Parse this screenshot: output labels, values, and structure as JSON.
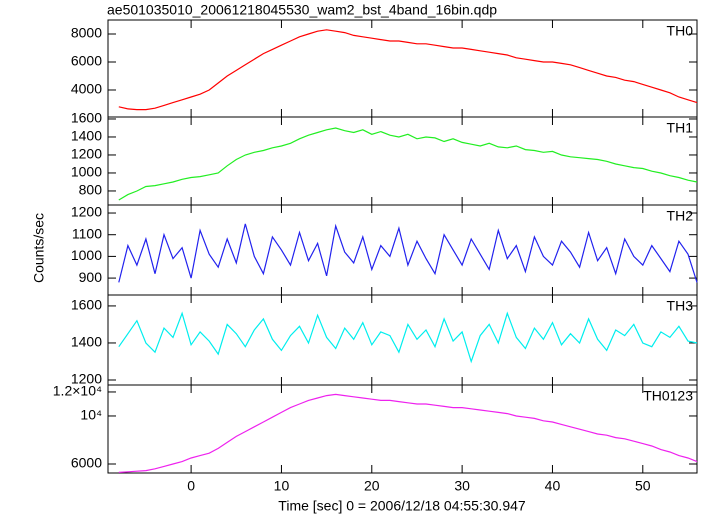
{
  "title": "ae501035010_20061218045530_wam2_bst_4band_16bin.qdp",
  "x_label": "Time [sec] 0 = 2006/12/18 04:55:30.947",
  "y_label": "Counts/sec",
  "chart_data": [
    {
      "type": "line",
      "xlim": [
        -9.2,
        56
      ],
      "ylim": [
        2070,
        9000
      ],
      "yticks": [
        4000,
        6000,
        8000
      ],
      "x": [
        -8,
        -7,
        -6,
        -5,
        -4,
        -3,
        -2,
        -1,
        0,
        1,
        2,
        3,
        4,
        5,
        6,
        7,
        8,
        9,
        10,
        11,
        12,
        13,
        14,
        15,
        16,
        17,
        18,
        19,
        20,
        21,
        22,
        23,
        24,
        25,
        26,
        27,
        28,
        29,
        30,
        31,
        32,
        33,
        34,
        35,
        36,
        37,
        38,
        39,
        40,
        41,
        42,
        43,
        44,
        45,
        46,
        47,
        48,
        49,
        50,
        51,
        52,
        53,
        54,
        55,
        56
      ],
      "series": [
        {
          "name": "TH0",
          "color": "#ff0000",
          "values": [
            2800,
            2650,
            2600,
            2600,
            2700,
            2900,
            3100,
            3300,
            3500,
            3700,
            4000,
            4500,
            5000,
            5400,
            5800,
            6200,
            6600,
            6900,
            7200,
            7500,
            7800,
            8000,
            8200,
            8300,
            8200,
            8100,
            7900,
            7800,
            7700,
            7600,
            7500,
            7500,
            7400,
            7300,
            7300,
            7200,
            7100,
            7000,
            7000,
            6900,
            6800,
            6700,
            6600,
            6500,
            6300,
            6200,
            6100,
            6000,
            6000,
            5900,
            5800,
            5600,
            5400,
            5200,
            5000,
            4900,
            4700,
            4600,
            4400,
            4200,
            4000,
            3800,
            3500,
            3300,
            3100
          ]
        }
      ]
    },
    {
      "type": "line",
      "xlim": [
        -9.2,
        56
      ],
      "ylim": [
        644,
        1622
      ],
      "yticks": [
        800,
        1000,
        1200,
        1400,
        1600
      ],
      "x": [
        -8,
        -7,
        -6,
        -5,
        -4,
        -3,
        -2,
        -1,
        0,
        1,
        2,
        3,
        4,
        5,
        6,
        7,
        8,
        9,
        10,
        11,
        12,
        13,
        14,
        15,
        16,
        17,
        18,
        19,
        20,
        21,
        22,
        23,
        24,
        25,
        26,
        27,
        28,
        29,
        30,
        31,
        32,
        33,
        34,
        35,
        36,
        37,
        38,
        39,
        40,
        41,
        42,
        43,
        44,
        45,
        46,
        47,
        48,
        49,
        50,
        51,
        52,
        53,
        54,
        55,
        56
      ],
      "series": [
        {
          "name": "TH1",
          "color": "#22ee22",
          "values": [
            700,
            760,
            800,
            850,
            860,
            880,
            900,
            930,
            950,
            960,
            980,
            1000,
            1080,
            1150,
            1200,
            1230,
            1250,
            1280,
            1300,
            1330,
            1380,
            1420,
            1450,
            1480,
            1500,
            1470,
            1450,
            1480,
            1430,
            1460,
            1420,
            1400,
            1430,
            1380,
            1400,
            1390,
            1350,
            1380,
            1340,
            1320,
            1300,
            1330,
            1290,
            1280,
            1300,
            1260,
            1250,
            1230,
            1240,
            1200,
            1180,
            1170,
            1160,
            1150,
            1130,
            1100,
            1080,
            1060,
            1050,
            1020,
            1000,
            970,
            950,
            920,
            900
          ]
        }
      ]
    },
    {
      "type": "line",
      "xlim": [
        -9.2,
        56
      ],
      "ylim": [
        822,
        1237
      ],
      "yticks": [
        900,
        1000,
        1100,
        1200
      ],
      "x": [
        -8,
        -7,
        -6,
        -5,
        -4,
        -3,
        -2,
        -1,
        0,
        1,
        2,
        3,
        4,
        5,
        6,
        7,
        8,
        9,
        10,
        11,
        12,
        13,
        14,
        15,
        16,
        17,
        18,
        19,
        20,
        21,
        22,
        23,
        24,
        25,
        26,
        27,
        28,
        29,
        30,
        31,
        32,
        33,
        34,
        35,
        36,
        37,
        38,
        39,
        40,
        41,
        42,
        43,
        44,
        45,
        46,
        47,
        48,
        49,
        50,
        51,
        52,
        53,
        54,
        55,
        56
      ],
      "series": [
        {
          "name": "TH2",
          "color": "#2222ee",
          "values": [
            880,
            1050,
            960,
            1080,
            920,
            1100,
            990,
            1040,
            900,
            1120,
            1010,
            950,
            1080,
            970,
            1150,
            1000,
            920,
            1090,
            1030,
            960,
            1110,
            980,
            1060,
            910,
            1140,
            1020,
            970,
            1090,
            940,
            1050,
            1000,
            1130,
            960,
            1070,
            990,
            920,
            1100,
            1030,
            960,
            1080,
            1010,
            940,
            1120,
            990,
            1050,
            930,
            1090,
            1000,
            960,
            1070,
            1020,
            950,
            1110,
            980,
            1040,
            920,
            1080,
            1000,
            960,
            1050,
            990,
            930,
            1070,
            1010,
            880
          ]
        }
      ]
    },
    {
      "type": "line",
      "xlim": [
        -9.2,
        56
      ],
      "ylim": [
        1173,
        1659
      ],
      "yticks": [
        1200,
        1400,
        1600
      ],
      "x": [
        -8,
        -7,
        -6,
        -5,
        -4,
        -3,
        -2,
        -1,
        0,
        1,
        2,
        3,
        4,
        5,
        6,
        7,
        8,
        9,
        10,
        11,
        12,
        13,
        14,
        15,
        16,
        17,
        18,
        19,
        20,
        21,
        22,
        23,
        24,
        25,
        26,
        27,
        28,
        29,
        30,
        31,
        32,
        33,
        34,
        35,
        36,
        37,
        38,
        39,
        40,
        41,
        42,
        43,
        44,
        45,
        46,
        47,
        48,
        49,
        50,
        51,
        52,
        53,
        54,
        55,
        56
      ],
      "series": [
        {
          "name": "TH3",
          "color": "#00eeee",
          "values": [
            1380,
            1450,
            1520,
            1400,
            1350,
            1480,
            1430,
            1560,
            1390,
            1460,
            1410,
            1340,
            1500,
            1450,
            1380,
            1470,
            1530,
            1420,
            1360,
            1440,
            1490,
            1400,
            1550,
            1430,
            1370,
            1480,
            1420,
            1510,
            1390,
            1460,
            1440,
            1350,
            1500,
            1420,
            1470,
            1380,
            1530,
            1410,
            1460,
            1300,
            1440,
            1500,
            1400,
            1560,
            1430,
            1370,
            1480,
            1420,
            1510,
            1390,
            1450,
            1400,
            1530,
            1420,
            1360,
            1470,
            1440,
            1500,
            1400,
            1380,
            1460,
            1430,
            1490,
            1410,
            1400
          ]
        }
      ]
    },
    {
      "type": "line",
      "xlim": [
        -9.2,
        56
      ],
      "ylim": [
        5250,
        12580
      ],
      "yticks": [
        6000,
        {
          "value": 10000,
          "label": "10⁴"
        },
        {
          "value": 12000,
          "label": "1.2×10⁴"
        }
      ],
      "xticks": [
        0,
        10,
        20,
        30,
        40,
        50
      ],
      "x": [
        -8,
        -7,
        -6,
        -5,
        -4,
        -3,
        -2,
        -1,
        0,
        1,
        2,
        3,
        4,
        5,
        6,
        7,
        8,
        9,
        10,
        11,
        12,
        13,
        14,
        15,
        16,
        17,
        18,
        19,
        20,
        21,
        22,
        23,
        24,
        25,
        26,
        27,
        28,
        29,
        30,
        31,
        32,
        33,
        34,
        35,
        36,
        37,
        38,
        39,
        40,
        41,
        42,
        43,
        44,
        45,
        46,
        47,
        48,
        49,
        50,
        51,
        52,
        53,
        54,
        55,
        56
      ],
      "series": [
        {
          "name": "TH0123",
          "color": "#ee22ee",
          "values": [
            5300,
            5350,
            5400,
            5450,
            5600,
            5800,
            6000,
            6200,
            6500,
            6700,
            6900,
            7300,
            7800,
            8300,
            8700,
            9100,
            9500,
            9900,
            10300,
            10700,
            11000,
            11300,
            11500,
            11700,
            11800,
            11700,
            11600,
            11500,
            11400,
            11300,
            11300,
            11200,
            11100,
            11000,
            11000,
            10900,
            10800,
            10700,
            10700,
            10600,
            10500,
            10400,
            10300,
            10200,
            10000,
            9900,
            9800,
            9600,
            9500,
            9300,
            9100,
            8900,
            8700,
            8500,
            8400,
            8200,
            8100,
            7900,
            7700,
            7500,
            7200,
            7000,
            6700,
            6500,
            6200
          ]
        }
      ]
    }
  ]
}
